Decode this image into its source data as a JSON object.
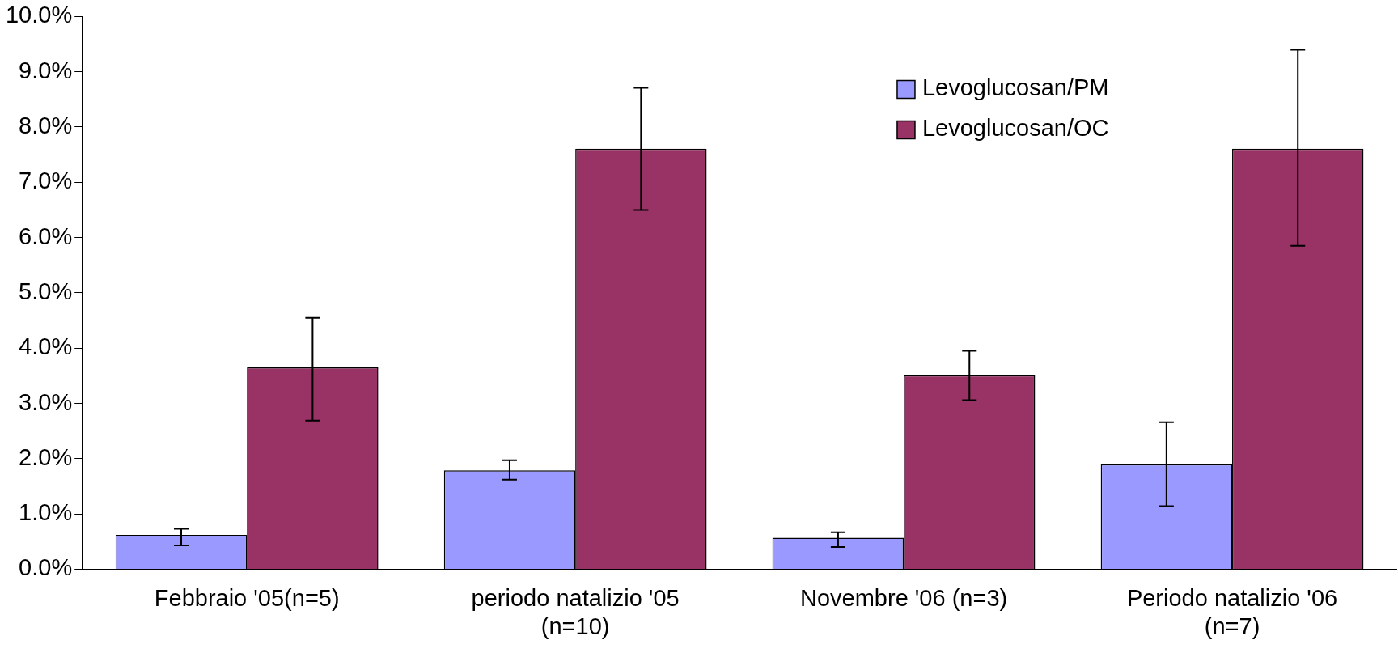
{
  "chart_data": {
    "type": "bar",
    "categories": [
      "Febbraio '05(n=5)",
      "periodo natalizio '05 (n=10)",
      "Novembre '06 (n=3)",
      "Periodo natalizio '06 (n=7)"
    ],
    "series": [
      {
        "name": "Levoglucosan/PM",
        "color": "#9999ff",
        "values": [
          0.62,
          1.79,
          0.57,
          1.9
        ],
        "errors": [
          [
            0.43,
            0.73
          ],
          [
            1.62,
            1.97
          ],
          [
            0.4,
            0.67
          ],
          [
            1.14,
            2.66
          ]
        ]
      },
      {
        "name": "Levoglucosan/OC",
        "color": "#993366",
        "values": [
          3.65,
          7.61,
          3.51,
          7.61
        ],
        "errors": [
          [
            2.69,
            4.55
          ],
          [
            6.5,
            8.71
          ],
          [
            3.06,
            3.95
          ],
          [
            5.85,
            9.4
          ]
        ]
      }
    ],
    "ylim": [
      0,
      10
    ],
    "yticks": [
      {
        "value": 0,
        "label": "0.0%"
      },
      {
        "value": 1,
        "label": "1.0%"
      },
      {
        "value": 2,
        "label": "2.0%"
      },
      {
        "value": 3,
        "label": "3.0%"
      },
      {
        "value": 4,
        "label": "4.0%"
      },
      {
        "value": 5,
        "label": "5.0%"
      },
      {
        "value": 6,
        "label": "6.0%"
      },
      {
        "value": 7,
        "label": "7.0%"
      },
      {
        "value": 8,
        "label": "8.0%"
      },
      {
        "value": 9,
        "label": "9.0%"
      },
      {
        "value": 10,
        "label": "10.0%"
      }
    ],
    "grid": false,
    "legend": "top right"
  }
}
